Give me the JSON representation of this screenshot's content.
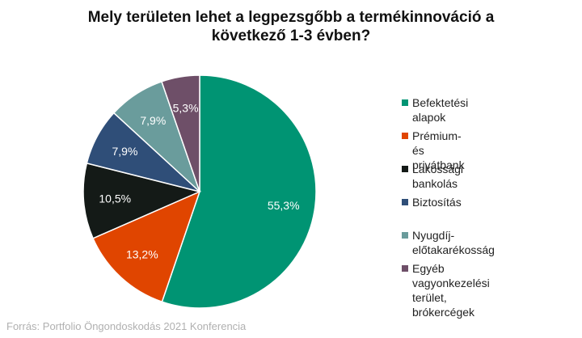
{
  "title_line1": "Mely területen lehet a legpezsgőbb a termékinnováció a",
  "title_line2": "következő 1-3 évben?",
  "chart_data": {
    "type": "pie",
    "title": "Mely területen lehet a legpezsgőbb a termékinnováció a következő 1-3 évben?",
    "slices": [
      {
        "label": "Befektetési alapok",
        "value": 55.3,
        "value_label": "55,3%",
        "color": "#009473"
      },
      {
        "label": "Prémium- és privátbank",
        "value": 13.2,
        "value_label": "13,2%",
        "color": "#E04500"
      },
      {
        "label": "Lakossági bankolás",
        "value": 10.5,
        "value_label": "10,5%",
        "color": "#141A17"
      },
      {
        "label": "Biztosítás",
        "value": 7.9,
        "value_label": "7,9%",
        "color": "#2F4E78"
      },
      {
        "label": "Nyugdíj-előtakarékosság",
        "value": 7.9,
        "value_label": "7,9%",
        "color": "#6A9C9C"
      },
      {
        "label": "Egyéb vagyonkezelési terület,\nbrókercégek",
        "value": 5.3,
        "value_label": "5,3%",
        "color": "#6E4F68"
      }
    ],
    "legend_position": "right",
    "start": "12 o'clock, clockwise"
  },
  "source": "Forrás: Portfolio Öngondoskodás 2021 Konferencia"
}
